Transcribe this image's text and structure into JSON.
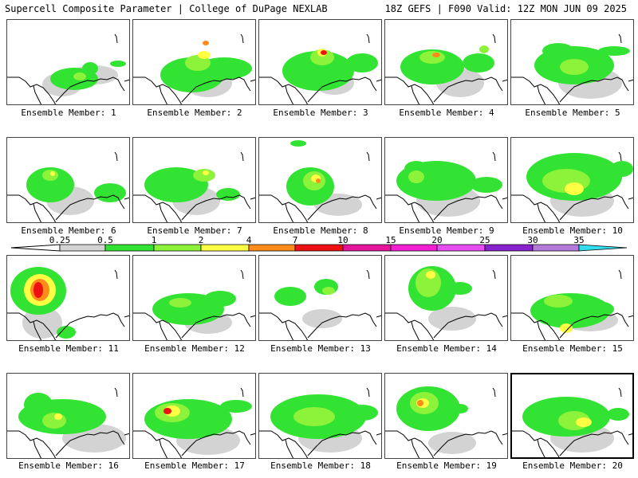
{
  "header": {
    "title": "Supercell Composite Parameter | College of DuPage NEXLAB",
    "run_info": "18Z GEFS | F090 Valid: 12Z MON JUN 09 2025"
  },
  "colorbar": {
    "labels": [
      "0.25",
      "0.5",
      "1",
      "2",
      "4",
      "7",
      "10",
      "15",
      "20",
      "25",
      "30",
      "35"
    ],
    "colors": [
      "#d3d3d3",
      "#33e333",
      "#8cf23a",
      "#ffff44",
      "#ff8c1a",
      "#ee1111",
      "#e6139b",
      "#f21fd3",
      "#e64ef2",
      "#8822cc",
      "#b37ad9",
      "#33ddee"
    ]
  },
  "members": [
    {
      "label": "Ensemble Member: 1"
    },
    {
      "label": "Ensemble Member: 2"
    },
    {
      "label": "Ensemble Member: 3"
    },
    {
      "label": "Ensemble Member: 4"
    },
    {
      "label": "Ensemble Member: 5"
    },
    {
      "label": "Ensemble Member: 6"
    },
    {
      "label": "Ensemble Member: 7"
    },
    {
      "label": "Ensemble Member: 8"
    },
    {
      "label": "Ensemble Member: 9"
    },
    {
      "label": "Ensemble Member: 10"
    },
    {
      "label": "Ensemble Member: 11"
    },
    {
      "label": "Ensemble Member: 12"
    },
    {
      "label": "Ensemble Member: 13"
    },
    {
      "label": "Ensemble Member: 14"
    },
    {
      "label": "Ensemble Member: 15"
    },
    {
      "label": "Ensemble Member: 16"
    },
    {
      "label": "Ensemble Member: 17"
    },
    {
      "label": "Ensemble Member: 18"
    },
    {
      "label": "Ensemble Member: 19"
    },
    {
      "label": "Ensemble Member: 20",
      "highlighted": true
    }
  ]
}
